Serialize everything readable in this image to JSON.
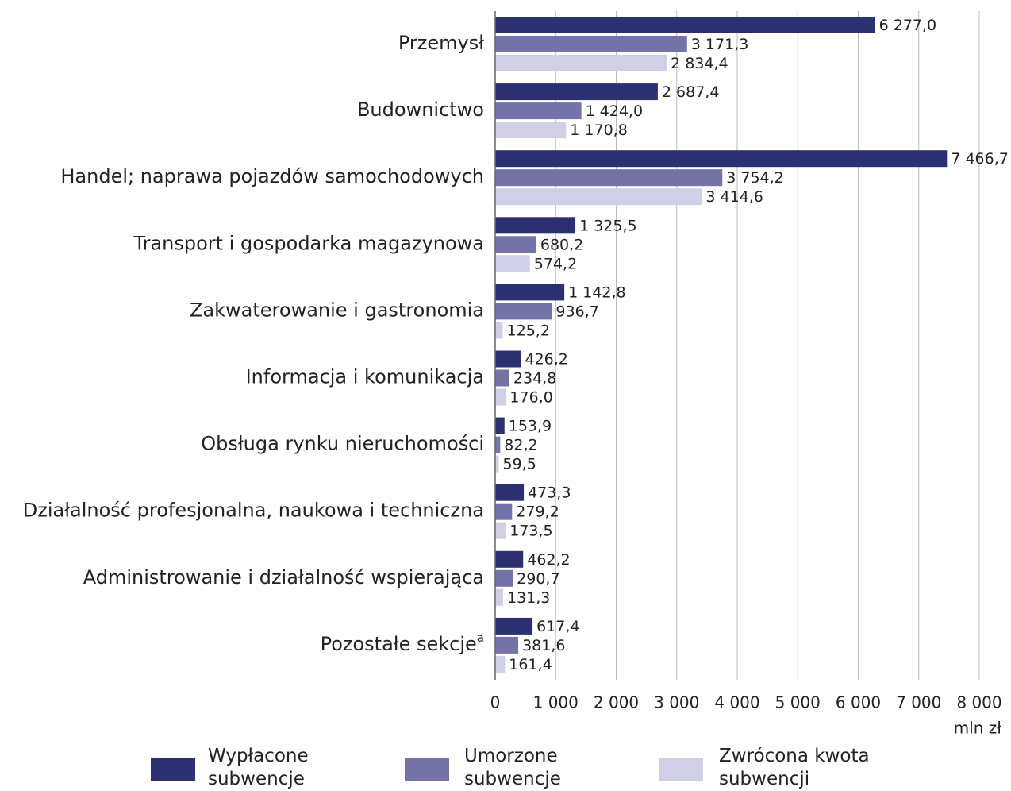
{
  "chart_data": {
    "type": "bar",
    "orientation": "horizontal",
    "categories": [
      "Przemysł",
      "Budownictwo",
      "Handel; naprawa pojazdów samochodowych",
      "Transport i gospodarka magazynowa",
      "Zakwaterowanie i gastronomia",
      "Informacja i komunikacja",
      "Obsługa rynku nieruchomości",
      "Działalność profesjonalna, naukowa i techniczna",
      "Administrowanie i działalność wspierająca",
      "Pozostałe sekcje"
    ],
    "category_superscripts": [
      null,
      null,
      null,
      null,
      null,
      null,
      null,
      null,
      null,
      "a"
    ],
    "series": [
      {
        "name": "Wypłacone subwencje",
        "color": "#2b3170",
        "values": [
          6277.0,
          2687.4,
          7466.7,
          1325.5,
          1142.8,
          426.2,
          153.9,
          473.3,
          462.2,
          617.4
        ],
        "value_labels": [
          "6 277,0",
          "2 687,4",
          "7 466,7",
          "1 325,5",
          "1 142,8",
          "426,2",
          "153,9",
          "473,3",
          "462,2",
          "617,4"
        ]
      },
      {
        "name": "Umorzone subwencje",
        "color": "#7473a8",
        "values": [
          3171.3,
          1424.0,
          3754.2,
          680.2,
          936.7,
          234.8,
          82.2,
          279.2,
          290.7,
          381.6
        ],
        "value_labels": [
          "3 171,3",
          "1 424,0",
          "3 754,2",
          "680,2",
          "936,7",
          "234,8",
          "82,2",
          "279,2",
          "290,7",
          "381,6"
        ]
      },
      {
        "name": "Zwrócona kwota subwencji",
        "color": "#cfd0e6",
        "values": [
          2834.4,
          1170.8,
          3414.6,
          574.2,
          125.2,
          176.0,
          59.5,
          173.5,
          131.3,
          161.4
        ],
        "value_labels": [
          "2 834,4",
          "1 170,8",
          "3 414,6",
          "574,2",
          "125,2",
          "176,0",
          "59,5",
          "173,5",
          "131,3",
          "161,4"
        ]
      }
    ],
    "x_label": "mln zł",
    "xlim": [
      0,
      8000
    ],
    "xticks": [
      0,
      {
        "value": 1000,
        "label": "1 000"
      },
      {
        "value": 2000,
        "label": "2 000"
      },
      {
        "value": 3000,
        "label": "3 000"
      },
      {
        "value": 4000,
        "label": "4 000"
      },
      {
        "value": 5000,
        "label": "5 000"
      },
      {
        "value": 6000,
        "label": "6 000"
      },
      {
        "value": 7000,
        "label": "7 000"
      },
      {
        "value": 8000,
        "label": "8 000"
      }
    ],
    "grid": true,
    "legend": "bottom"
  }
}
